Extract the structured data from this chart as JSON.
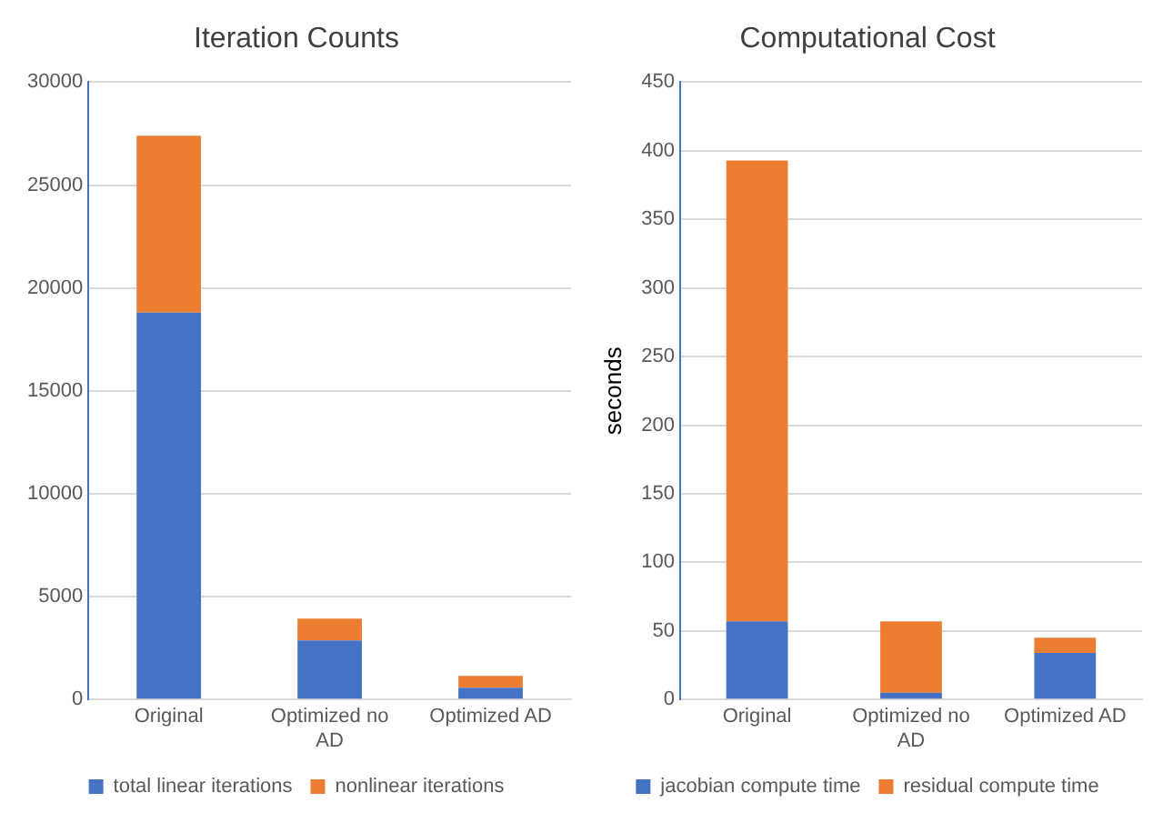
{
  "chart_data": [
    {
      "type": "bar",
      "title": "Iteration Counts",
      "categories": [
        "Original",
        "Optimized no AD",
        "Optimized AD"
      ],
      "stacked": true,
      "series": [
        {
          "name": "total linear iterations",
          "color": "#4472c4",
          "values": [
            18800,
            2870,
            570
          ]
        },
        {
          "name": "nonlinear iterations",
          "color": "#ed7d31",
          "values": [
            8600,
            1060,
            580
          ]
        }
      ],
      "ylim": [
        0,
        30000
      ],
      "yticks": [
        0,
        5000,
        10000,
        15000,
        20000,
        25000,
        30000
      ],
      "grid": "y",
      "legend": "bottom"
    },
    {
      "type": "bar",
      "title": "Computational Cost",
      "ylabel": "seconds",
      "categories": [
        "Original",
        "Optimized no AD",
        "Optimized AD"
      ],
      "stacked": true,
      "series": [
        {
          "name": "jacobian compute time",
          "color": "#4472c4",
          "values": [
            57,
            5,
            34
          ]
        },
        {
          "name": "residual compute time",
          "color": "#ed7d31",
          "values": [
            336,
            52,
            11
          ]
        }
      ],
      "ylim": [
        0,
        450
      ],
      "yticks": [
        0,
        50,
        100,
        150,
        200,
        250,
        300,
        350,
        400,
        450
      ],
      "grid": "y",
      "legend": "bottom"
    }
  ]
}
